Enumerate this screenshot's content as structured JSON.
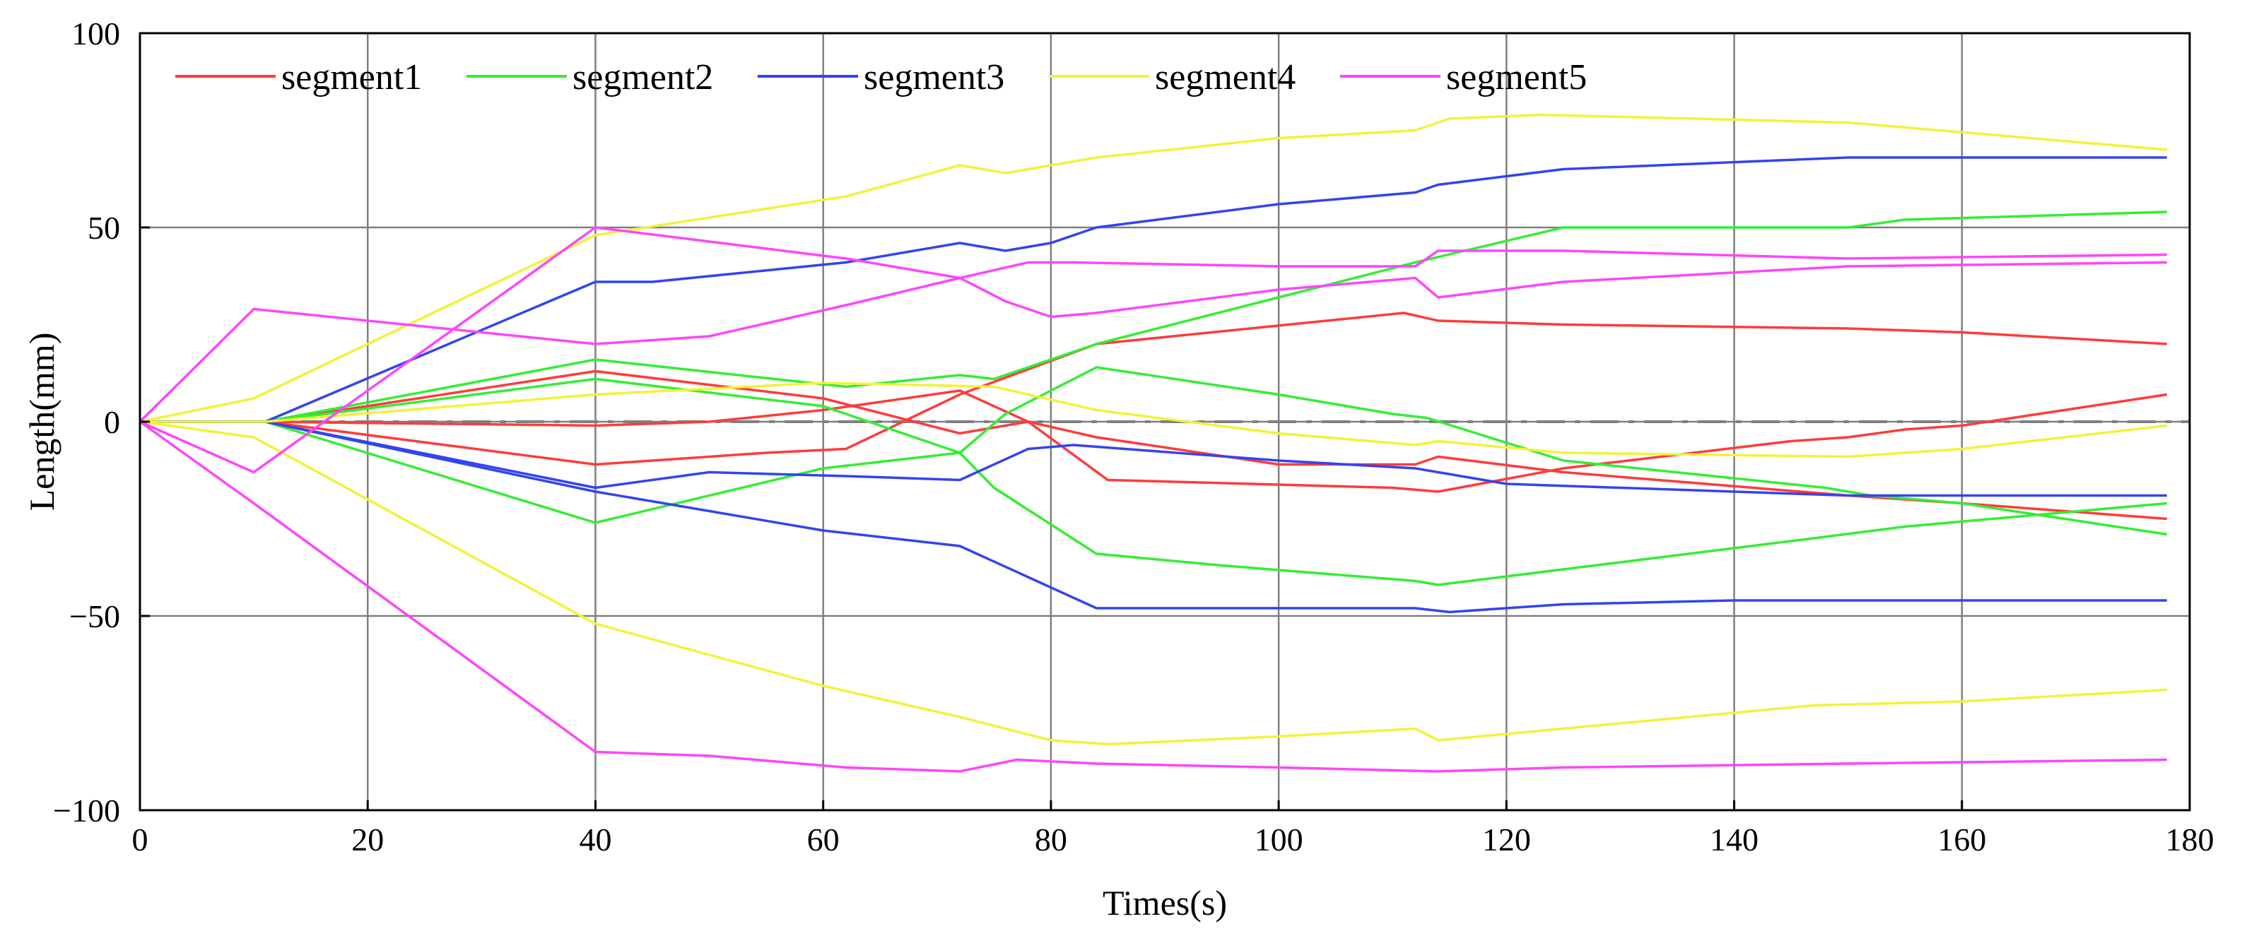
{
  "chart_data": {
    "type": "line",
    "title": "",
    "xlabel": "Times(s)",
    "ylabel": "Length(mm)",
    "xlim": [
      0,
      180
    ],
    "ylim": [
      -100,
      100
    ],
    "xticks": [
      0,
      20,
      40,
      60,
      80,
      100,
      120,
      140,
      160,
      180
    ],
    "yticks": [
      -100,
      -50,
      0,
      50,
      100
    ],
    "ytick_labels": [
      "−100",
      "−50",
      "0",
      "50",
      "100"
    ],
    "grid": true,
    "legend_position": "top",
    "zero_reference": {
      "y": 0,
      "style": "dashed",
      "color": "#808080"
    },
    "series": [
      {
        "name": "segment1",
        "color": "#ff3b3b",
        "lines": [
          [
            [
              0,
              0
            ],
            [
              11,
              0
            ],
            [
              40,
              13
            ],
            [
              60,
              6
            ],
            [
              72,
              -3
            ],
            [
              78,
              0
            ],
            [
              85,
              -15
            ],
            [
              110,
              -17
            ],
            [
              114,
              -18
            ],
            [
              125,
              -12
            ],
            [
              145,
              -5
            ],
            [
              150,
              -4
            ],
            [
              155,
              -2
            ],
            [
              160,
              -1
            ],
            [
              178,
              7
            ]
          ],
          [
            [
              0,
              0
            ],
            [
              11,
              0
            ],
            [
              40,
              -11
            ],
            [
              55,
              -8
            ],
            [
              62,
              -7
            ],
            [
              72,
              7
            ],
            [
              84,
              20
            ],
            [
              111,
              28
            ],
            [
              114,
              26
            ],
            [
              125,
              25
            ],
            [
              150,
              24
            ],
            [
              160,
              23
            ],
            [
              178,
              20
            ]
          ],
          [
            [
              0,
              0
            ],
            [
              11,
              0
            ],
            [
              40,
              -1
            ],
            [
              50,
              0
            ],
            [
              60,
              3
            ],
            [
              72,
              8
            ],
            [
              78,
              0
            ],
            [
              84,
              -4
            ],
            [
              100,
              -11
            ],
            [
              112,
              -11
            ],
            [
              114,
              -9
            ],
            [
              125,
              -13
            ],
            [
              150,
              -19
            ],
            [
              160,
              -21
            ],
            [
              178,
              -25
            ]
          ]
        ]
      },
      {
        "name": "segment2",
        "color": "#33ee33",
        "lines": [
          [
            [
              0,
              0
            ],
            [
              11,
              0
            ],
            [
              40,
              16
            ],
            [
              62,
              9
            ],
            [
              72,
              12
            ],
            [
              75,
              11
            ],
            [
              84,
              20
            ],
            [
              100,
              32
            ],
            [
              112,
              41
            ],
            [
              125,
              50
            ],
            [
              150,
              50
            ],
            [
              155,
              52
            ],
            [
              178,
              54
            ]
          ],
          [
            [
              0,
              0
            ],
            [
              11,
              0
            ],
            [
              40,
              11
            ],
            [
              60,
              4
            ],
            [
              72,
              -8
            ],
            [
              76,
              2
            ],
            [
              84,
              14
            ],
            [
              100,
              7
            ],
            [
              110,
              2
            ],
            [
              113,
              1
            ],
            [
              125,
              -10
            ],
            [
              148,
              -17
            ],
            [
              152,
              -19
            ],
            [
              160,
              -21
            ],
            [
              178,
              -29
            ]
          ],
          [
            [
              0,
              0
            ],
            [
              11,
              0
            ],
            [
              40,
              -26
            ],
            [
              60,
              -12
            ],
            [
              72,
              -8
            ],
            [
              75,
              -17
            ],
            [
              84,
              -34
            ],
            [
              95,
              -37
            ],
            [
              112,
              -41
            ],
            [
              114,
              -42
            ],
            [
              125,
              -38
            ],
            [
              147,
              -30
            ],
            [
              155,
              -27
            ],
            [
              178,
              -21
            ]
          ]
        ]
      },
      {
        "name": "segment3",
        "color": "#3344ee",
        "lines": [
          [
            [
              0,
              0
            ],
            [
              11,
              0
            ],
            [
              40,
              36
            ],
            [
              45,
              36
            ],
            [
              62,
              41
            ],
            [
              72,
              46
            ],
            [
              76,
              44
            ],
            [
              80,
              46
            ],
            [
              84,
              50
            ],
            [
              100,
              56
            ],
            [
              112,
              59
            ],
            [
              114,
              61
            ],
            [
              125,
              65
            ],
            [
              150,
              68
            ],
            [
              160,
              68
            ],
            [
              178,
              68
            ]
          ],
          [
            [
              0,
              0
            ],
            [
              11,
              0
            ],
            [
              40,
              -17
            ],
            [
              50,
              -13
            ],
            [
              62,
              -14
            ],
            [
              72,
              -15
            ],
            [
              78,
              -7
            ],
            [
              82,
              -6
            ],
            [
              100,
              -10
            ],
            [
              112,
              -12
            ],
            [
              120,
              -16
            ],
            [
              150,
              -19
            ],
            [
              178,
              -19
            ]
          ],
          [
            [
              0,
              0
            ],
            [
              11,
              0
            ],
            [
              40,
              -18
            ],
            [
              60,
              -28
            ],
            [
              72,
              -32
            ],
            [
              84,
              -48
            ],
            [
              100,
              -48
            ],
            [
              112,
              -48
            ],
            [
              115,
              -49
            ],
            [
              125,
              -47
            ],
            [
              140,
              -46
            ],
            [
              178,
              -46
            ]
          ]
        ]
      },
      {
        "name": "segment4",
        "color": "#f2f23a",
        "lines": [
          [
            [
              0,
              0
            ],
            [
              10,
              6
            ],
            [
              40,
              48
            ],
            [
              62,
              58
            ],
            [
              72,
              66
            ],
            [
              76,
              64
            ],
            [
              84,
              68
            ],
            [
              100,
              73
            ],
            [
              112,
              75
            ],
            [
              115,
              78
            ],
            [
              123,
              79
            ],
            [
              150,
              77
            ],
            [
              178,
              70
            ]
          ],
          [
            [
              0,
              0
            ],
            [
              11,
              0
            ],
            [
              40,
              7
            ],
            [
              60,
              10
            ],
            [
              75,
              9
            ],
            [
              84,
              3
            ],
            [
              100,
              -3
            ],
            [
              112,
              -6
            ],
            [
              114,
              -5
            ],
            [
              125,
              -8
            ],
            [
              150,
              -9
            ],
            [
              160,
              -7
            ],
            [
              178,
              -1
            ]
          ],
          [
            [
              0,
              0
            ],
            [
              10,
              -4
            ],
            [
              40,
              -52
            ],
            [
              60,
              -68
            ],
            [
              72,
              -76
            ],
            [
              80,
              -82
            ],
            [
              85,
              -83
            ],
            [
              100,
              -81
            ],
            [
              112,
              -79
            ],
            [
              114,
              -82
            ],
            [
              125,
              -79
            ],
            [
              147,
              -73
            ],
            [
              160,
              -72
            ],
            [
              178,
              -69
            ]
          ]
        ]
      },
      {
        "name": "segment5",
        "color": "#ff44ff",
        "lines": [
          [
            [
              0,
              0
            ],
            [
              10,
              29
            ],
            [
              40,
              20
            ],
            [
              50,
              22
            ],
            [
              62,
              30
            ],
            [
              72,
              37
            ],
            [
              78,
              41
            ],
            [
              82,
              41
            ],
            [
              100,
              40
            ],
            [
              112,
              40
            ],
            [
              114,
              44
            ],
            [
              125,
              44
            ],
            [
              150,
              42
            ],
            [
              178,
              43
            ]
          ],
          [
            [
              0,
              0
            ],
            [
              10,
              -13
            ],
            [
              40,
              50
            ],
            [
              62,
              42
            ],
            [
              72,
              37
            ],
            [
              76,
              31
            ],
            [
              80,
              27
            ],
            [
              84,
              28
            ],
            [
              100,
              34
            ],
            [
              112,
              37
            ],
            [
              114,
              32
            ],
            [
              125,
              36
            ],
            [
              150,
              40
            ],
            [
              178,
              41
            ]
          ],
          [
            [
              0,
              0
            ],
            [
              10,
              -21
            ],
            [
              40,
              -85
            ],
            [
              50,
              -86
            ],
            [
              62,
              -89
            ],
            [
              72,
              -90
            ],
            [
              77,
              -87
            ],
            [
              84,
              -88
            ],
            [
              100,
              -89
            ],
            [
              114,
              -90
            ],
            [
              125,
              -89
            ],
            [
              150,
              -88
            ],
            [
              178,
              -87
            ]
          ]
        ]
      }
    ]
  }
}
